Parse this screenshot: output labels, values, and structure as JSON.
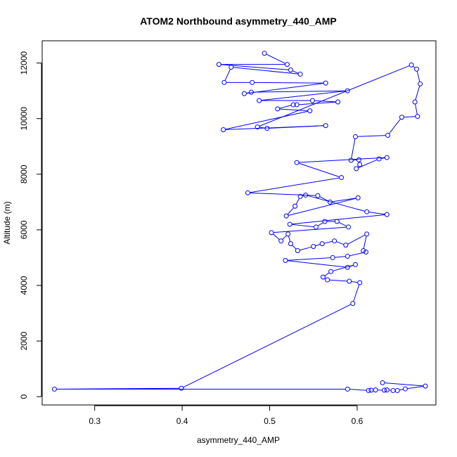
{
  "chart_data": {
    "type": "line",
    "title": "ATOM2 Northbound asymmetry_440_AMP",
    "xlabel": "asymmetry_440_AMP",
    "ylabel": "Altitude (m)",
    "xlim": [
      0.24,
      0.69
    ],
    "ylim": [
      -300,
      12800
    ],
    "x_ticks": [
      0.3,
      0.4,
      0.5,
      0.6
    ],
    "x_tick_labels": [
      "0.3",
      "0.4",
      "0.5",
      "0.6"
    ],
    "y_ticks": [
      0,
      2000,
      4000,
      6000,
      8000,
      10000,
      12000
    ],
    "y_tick_labels": [
      "0",
      "2000",
      "4000",
      "6000",
      "8000",
      "10000",
      "12000"
    ],
    "grid": false,
    "legend": "none",
    "series_color": "#0000ff",
    "marker": "open-circle",
    "series": [
      {
        "points": [
          [
            0.494,
            12350
          ],
          [
            0.52,
            11950
          ],
          [
            0.442,
            11950
          ],
          [
            0.524,
            11750
          ],
          [
            0.535,
            11600
          ],
          [
            0.456,
            11850
          ],
          [
            0.448,
            11300
          ],
          [
            0.48,
            11300
          ],
          [
            0.564,
            11280
          ],
          [
            0.471,
            10900
          ],
          [
            0.479,
            10950
          ],
          [
            0.589,
            11000
          ],
          [
            0.488,
            10650
          ],
          [
            0.549,
            10650
          ],
          [
            0.578,
            10600
          ],
          [
            0.531,
            10500
          ],
          [
            0.527,
            10500
          ],
          [
            0.509,
            10350
          ],
          [
            0.546,
            10280
          ],
          [
            0.447,
            9600
          ],
          [
            0.564,
            9750
          ],
          [
            0.497,
            9650
          ],
          [
            0.486,
            9700
          ],
          [
            0.662,
            11930
          ],
          [
            0.668,
            11780
          ],
          [
            0.672,
            11250
          ],
          [
            0.666,
            10600
          ],
          [
            0.669,
            10080
          ],
          [
            0.651,
            10050
          ],
          [
            0.635,
            9400
          ],
          [
            0.598,
            9350
          ],
          [
            0.593,
            8500
          ],
          [
            0.602,
            8520
          ],
          [
            0.603,
            8350
          ],
          [
            0.599,
            8200
          ],
          [
            0.625,
            8550
          ],
          [
            0.634,
            8600
          ],
          [
            0.531,
            8420
          ],
          [
            0.582,
            7880
          ],
          [
            0.475,
            7330
          ],
          [
            0.555,
            7230
          ],
          [
            0.569,
            7000
          ],
          [
            0.601,
            7150
          ],
          [
            0.519,
            6500
          ],
          [
            0.529,
            6850
          ],
          [
            0.535,
            7200
          ],
          [
            0.541,
            7250
          ],
          [
            0.611,
            6650
          ],
          [
            0.634,
            6550
          ],
          [
            0.523,
            6200
          ],
          [
            0.553,
            6100
          ],
          [
            0.563,
            6300
          ],
          [
            0.577,
            6300
          ],
          [
            0.59,
            6100
          ],
          [
            0.502,
            5900
          ],
          [
            0.513,
            5600
          ],
          [
            0.521,
            5850
          ],
          [
            0.524,
            5500
          ],
          [
            0.532,
            5250
          ],
          [
            0.55,
            5400
          ],
          [
            0.56,
            5500
          ],
          [
            0.574,
            5600
          ],
          [
            0.587,
            5450
          ],
          [
            0.611,
            5850
          ],
          [
            0.607,
            5250
          ],
          [
            0.61,
            5200
          ],
          [
            0.589,
            5050
          ],
          [
            0.572,
            5000
          ],
          [
            0.518,
            4900
          ],
          [
            0.589,
            4650
          ],
          [
            0.598,
            4750
          ],
          [
            0.57,
            4500
          ],
          [
            0.561,
            4300
          ],
          [
            0.566,
            4200
          ],
          [
            0.591,
            4150
          ],
          [
            0.603,
            4100
          ],
          [
            0.595,
            3350
          ],
          [
            0.399,
            300
          ],
          [
            0.254,
            270
          ],
          [
            0.589,
            270
          ],
          [
            0.613,
            220
          ],
          [
            0.616,
            230
          ],
          [
            0.621,
            240
          ],
          [
            0.631,
            230
          ],
          [
            0.634,
            240
          ],
          [
            0.641,
            220
          ],
          [
            0.646,
            220
          ],
          [
            0.655,
            280
          ],
          [
            0.678,
            380
          ],
          [
            0.629,
            500
          ]
        ]
      }
    ]
  }
}
